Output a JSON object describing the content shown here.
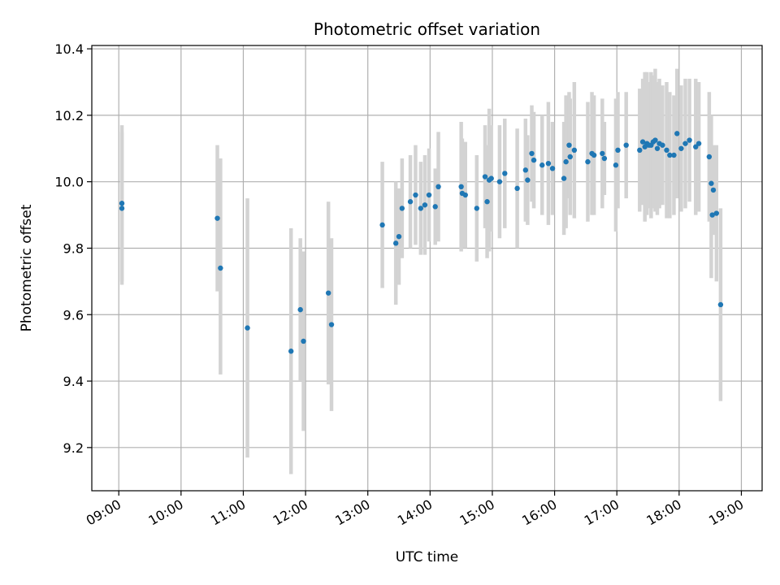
{
  "chart_data": {
    "type": "scatter",
    "title": "Photometric offset variation",
    "xlabel": "UTC time",
    "ylabel": "Photometric offset",
    "x_ticks": [
      "09:00",
      "10:00",
      "11:00",
      "12:00",
      "13:00",
      "14:00",
      "15:00",
      "16:00",
      "17:00",
      "18:00",
      "19:00"
    ],
    "y_ticks": [
      "9.2",
      "9.4",
      "9.6",
      "9.8",
      "10.0",
      "10.2",
      "10.4"
    ],
    "xlim": [
      "08:34",
      "19:20"
    ],
    "ylim": [
      9.07,
      10.41
    ],
    "grid": true,
    "x_tick_rotation": 30,
    "colors": {
      "points": "#1f77b4",
      "errorbars": "#d3d3d3",
      "grid": "#b0b0b0",
      "axes": "#000000"
    },
    "points": [
      {
        "t": "09:03",
        "y": 9.935,
        "lo": 9.7,
        "hi": 10.17
      },
      {
        "t": "09:03",
        "y": 9.92,
        "lo": 9.69,
        "hi": 10.15
      },
      {
        "t": "10:35",
        "y": 9.89,
        "lo": 9.67,
        "hi": 10.11
      },
      {
        "t": "10:38",
        "y": 9.74,
        "lo": 9.42,
        "hi": 10.07
      },
      {
        "t": "11:04",
        "y": 9.56,
        "lo": 9.17,
        "hi": 9.95
      },
      {
        "t": "11:46",
        "y": 9.49,
        "lo": 9.12,
        "hi": 9.86
      },
      {
        "t": "11:55",
        "y": 9.615,
        "lo": 9.4,
        "hi": 9.83
      },
      {
        "t": "11:58",
        "y": 9.52,
        "lo": 9.25,
        "hi": 9.79
      },
      {
        "t": "12:22",
        "y": 9.665,
        "lo": 9.39,
        "hi": 9.94
      },
      {
        "t": "12:25",
        "y": 9.57,
        "lo": 9.31,
        "hi": 9.83
      },
      {
        "t": "13:14",
        "y": 9.87,
        "lo": 9.68,
        "hi": 10.06
      },
      {
        "t": "13:27",
        "y": 9.815,
        "lo": 9.63,
        "hi": 10.0
      },
      {
        "t": "13:30",
        "y": 9.835,
        "lo": 9.69,
        "hi": 9.98
      },
      {
        "t": "13:33",
        "y": 9.92,
        "lo": 9.77,
        "hi": 10.07
      },
      {
        "t": "13:41",
        "y": 9.94,
        "lo": 9.8,
        "hi": 10.08
      },
      {
        "t": "13:46",
        "y": 9.96,
        "lo": 9.81,
        "hi": 10.11
      },
      {
        "t": "13:51",
        "y": 9.92,
        "lo": 9.78,
        "hi": 10.06
      },
      {
        "t": "13:55",
        "y": 9.93,
        "lo": 9.78,
        "hi": 10.08
      },
      {
        "t": "13:59",
        "y": 9.96,
        "lo": 9.82,
        "hi": 10.1
      },
      {
        "t": "14:05",
        "y": 9.925,
        "lo": 9.81,
        "hi": 10.04
      },
      {
        "t": "14:08",
        "y": 9.985,
        "lo": 9.82,
        "hi": 10.15
      },
      {
        "t": "14:30",
        "y": 9.985,
        "lo": 9.79,
        "hi": 10.18
      },
      {
        "t": "14:31",
        "y": 9.965,
        "lo": 9.8,
        "hi": 10.13
      },
      {
        "t": "14:34",
        "y": 9.96,
        "lo": 9.8,
        "hi": 10.12
      },
      {
        "t": "14:45",
        "y": 9.92,
        "lo": 9.76,
        "hi": 10.08
      },
      {
        "t": "14:53",
        "y": 10.015,
        "lo": 9.86,
        "hi": 10.17
      },
      {
        "t": "14:55",
        "y": 9.94,
        "lo": 9.77,
        "hi": 10.11
      },
      {
        "t": "14:57",
        "y": 10.005,
        "lo": 9.79,
        "hi": 10.22
      },
      {
        "t": "14:59",
        "y": 10.01,
        "lo": 9.85,
        "hi": 10.17
      },
      {
        "t": "15:07",
        "y": 10.0,
        "lo": 9.83,
        "hi": 10.17
      },
      {
        "t": "15:12",
        "y": 10.025,
        "lo": 9.86,
        "hi": 10.19
      },
      {
        "t": "15:24",
        "y": 9.98,
        "lo": 9.8,
        "hi": 10.16
      },
      {
        "t": "15:32",
        "y": 10.035,
        "lo": 9.88,
        "hi": 10.19
      },
      {
        "t": "15:34",
        "y": 10.005,
        "lo": 9.87,
        "hi": 10.14
      },
      {
        "t": "15:38",
        "y": 10.085,
        "lo": 9.94,
        "hi": 10.23
      },
      {
        "t": "15:40",
        "y": 10.065,
        "lo": 9.92,
        "hi": 10.21
      },
      {
        "t": "15:48",
        "y": 10.05,
        "lo": 9.9,
        "hi": 10.2
      },
      {
        "t": "15:54",
        "y": 10.055,
        "lo": 9.87,
        "hi": 10.24
      },
      {
        "t": "15:58",
        "y": 10.04,
        "lo": 9.9,
        "hi": 10.18
      },
      {
        "t": "16:09",
        "y": 10.01,
        "lo": 9.84,
        "hi": 10.18
      },
      {
        "t": "16:11",
        "y": 10.06,
        "lo": 9.86,
        "hi": 10.26
      },
      {
        "t": "16:14",
        "y": 10.11,
        "lo": 9.95,
        "hi": 10.27
      },
      {
        "t": "16:15",
        "y": 10.075,
        "lo": 9.9,
        "hi": 10.25
      },
      {
        "t": "16:19",
        "y": 10.095,
        "lo": 9.89,
        "hi": 10.3
      },
      {
        "t": "16:32",
        "y": 10.06,
        "lo": 9.88,
        "hi": 10.24
      },
      {
        "t": "16:36",
        "y": 10.085,
        "lo": 9.9,
        "hi": 10.27
      },
      {
        "t": "16:38",
        "y": 10.08,
        "lo": 9.9,
        "hi": 10.26
      },
      {
        "t": "16:46",
        "y": 10.085,
        "lo": 9.92,
        "hi": 10.25
      },
      {
        "t": "16:48",
        "y": 10.07,
        "lo": 9.96,
        "hi": 10.18
      },
      {
        "t": "16:59",
        "y": 10.05,
        "lo": 9.85,
        "hi": 10.25
      },
      {
        "t": "17:01",
        "y": 10.095,
        "lo": 9.92,
        "hi": 10.27
      },
      {
        "t": "17:09",
        "y": 10.11,
        "lo": 9.95,
        "hi": 10.27
      },
      {
        "t": "17:22",
        "y": 10.095,
        "lo": 9.91,
        "hi": 10.28
      },
      {
        "t": "17:25",
        "y": 10.12,
        "lo": 9.93,
        "hi": 10.31
      },
      {
        "t": "17:27",
        "y": 10.105,
        "lo": 9.88,
        "hi": 10.33
      },
      {
        "t": "17:29",
        "y": 10.115,
        "lo": 9.9,
        "hi": 10.33
      },
      {
        "t": "17:31",
        "y": 10.11,
        "lo": 9.92,
        "hi": 10.3
      },
      {
        "t": "17:33",
        "y": 10.11,
        "lo": 9.89,
        "hi": 10.33
      },
      {
        "t": "17:35",
        "y": 10.12,
        "lo": 9.92,
        "hi": 10.32
      },
      {
        "t": "17:37",
        "y": 10.125,
        "lo": 9.91,
        "hi": 10.34
      },
      {
        "t": "17:39",
        "y": 10.1,
        "lo": 9.9,
        "hi": 10.3
      },
      {
        "t": "17:41",
        "y": 10.115,
        "lo": 9.92,
        "hi": 10.31
      },
      {
        "t": "17:44",
        "y": 10.11,
        "lo": 9.93,
        "hi": 10.29
      },
      {
        "t": "17:48",
        "y": 10.095,
        "lo": 9.89,
        "hi": 10.3
      },
      {
        "t": "17:51",
        "y": 10.08,
        "lo": 9.89,
        "hi": 10.27
      },
      {
        "t": "17:55",
        "y": 10.08,
        "lo": 9.9,
        "hi": 10.26
      },
      {
        "t": "17:58",
        "y": 10.145,
        "lo": 9.95,
        "hi": 10.34
      },
      {
        "t": "18:02",
        "y": 10.1,
        "lo": 9.91,
        "hi": 10.29
      },
      {
        "t": "18:06",
        "y": 10.115,
        "lo": 9.92,
        "hi": 10.31
      },
      {
        "t": "18:10",
        "y": 10.125,
        "lo": 9.94,
        "hi": 10.31
      },
      {
        "t": "18:16",
        "y": 10.105,
        "lo": 9.9,
        "hi": 10.31
      },
      {
        "t": "18:19",
        "y": 10.115,
        "lo": 9.91,
        "hi": 10.3
      },
      {
        "t": "18:29",
        "y": 10.075,
        "lo": 9.88,
        "hi": 10.27
      },
      {
        "t": "18:31",
        "y": 9.995,
        "lo": 9.71,
        "hi": 10.2
      },
      {
        "t": "18:32",
        "y": 9.9,
        "lo": 9.89,
        "hi": 9.91
      },
      {
        "t": "18:33",
        "y": 9.975,
        "lo": 9.84,
        "hi": 10.11
      },
      {
        "t": "18:36",
        "y": 9.905,
        "lo": 9.7,
        "hi": 10.11
      },
      {
        "t": "18:40",
        "y": 9.63,
        "lo": 9.34,
        "hi": 9.92
      }
    ]
  }
}
